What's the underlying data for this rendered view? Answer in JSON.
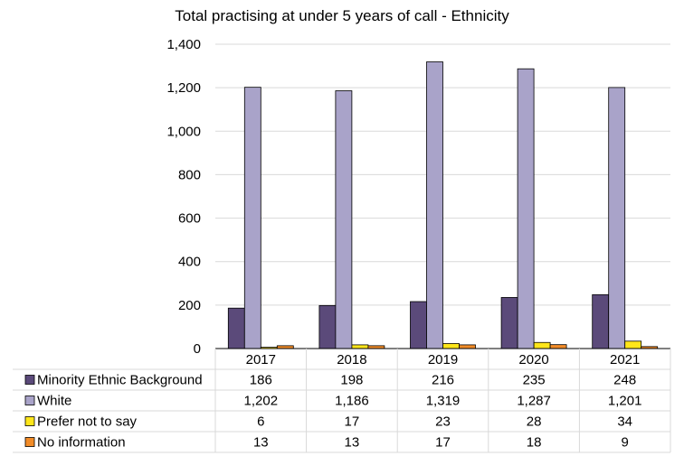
{
  "chart_data": {
    "type": "bar",
    "title": "Total practising at under 5 years of call - Ethnicity",
    "xlabel": "",
    "ylabel": "",
    "categories": [
      "2017",
      "2018",
      "2019",
      "2020",
      "2021"
    ],
    "ylim": [
      0,
      1400
    ],
    "yticks": [
      "0",
      "200",
      "400",
      "600",
      "800",
      "1,000",
      "1,200",
      "1,400"
    ],
    "grid": true,
    "legend": "data-table-below",
    "series": [
      {
        "name": "Minority Ethnic Background",
        "color": "#5b4a7a",
        "values": [
          186,
          198,
          216,
          235,
          248
        ],
        "labels": [
          "186",
          "198",
          "216",
          "235",
          "248"
        ]
      },
      {
        "name": "White",
        "color": "#a9a3c9",
        "values": [
          1202,
          1186,
          1319,
          1287,
          1201
        ],
        "labels": [
          "1,202",
          "1,186",
          "1,319",
          "1,287",
          "1,201"
        ]
      },
      {
        "name": "Prefer not to say",
        "color": "#ffe61a",
        "values": [
          6,
          17,
          23,
          28,
          34
        ],
        "labels": [
          "6",
          "17",
          "23",
          "28",
          "34"
        ]
      },
      {
        "name": "No information",
        "color": "#f28c28",
        "values": [
          13,
          13,
          17,
          18,
          9
        ],
        "labels": [
          "13",
          "13",
          "17",
          "18",
          "9"
        ]
      }
    ]
  }
}
